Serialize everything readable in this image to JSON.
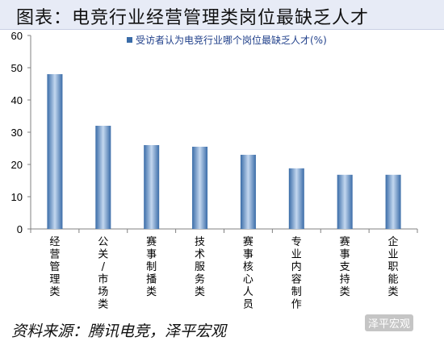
{
  "header": {
    "title": "图表：电竞行业经营管理类岗位最缺乏人才"
  },
  "footer": {
    "source": "资料来源：腾讯电竞，泽平宏观"
  },
  "watermark": {
    "text": "泽平宏观"
  },
  "chart_data": {
    "type": "bar",
    "categories": [
      "经营管理类",
      "公关/市场类",
      "赛事制播类",
      "技术服务类",
      "赛事核心人员",
      "专业内容制作",
      "赛事支持类",
      "企业职能类"
    ],
    "category_labels": [
      "经营管理类",
      "公关/市场类",
      "赛事制播类",
      "技术服务类",
      "赛事核心人员",
      "专业内容制作",
      "赛事支持类",
      "企业职能类"
    ],
    "series": [
      {
        "name": "受访者认为电竞行业哪个岗位最缺乏人才(%)",
        "values": [
          48,
          32,
          26,
          25.5,
          23,
          18.8,
          16.8,
          16.8
        ]
      }
    ],
    "ylim": [
      0,
      60
    ],
    "yticks": [
      "0",
      "10",
      "20",
      "30",
      "40",
      "50",
      "60"
    ],
    "grid": false,
    "legend_position": "top-right",
    "colors": {
      "bar_dark": "#3a6ca8",
      "bar_light": "#c3d7ef",
      "axis": "#808080",
      "legend_text": "#1f3f8a"
    }
  }
}
